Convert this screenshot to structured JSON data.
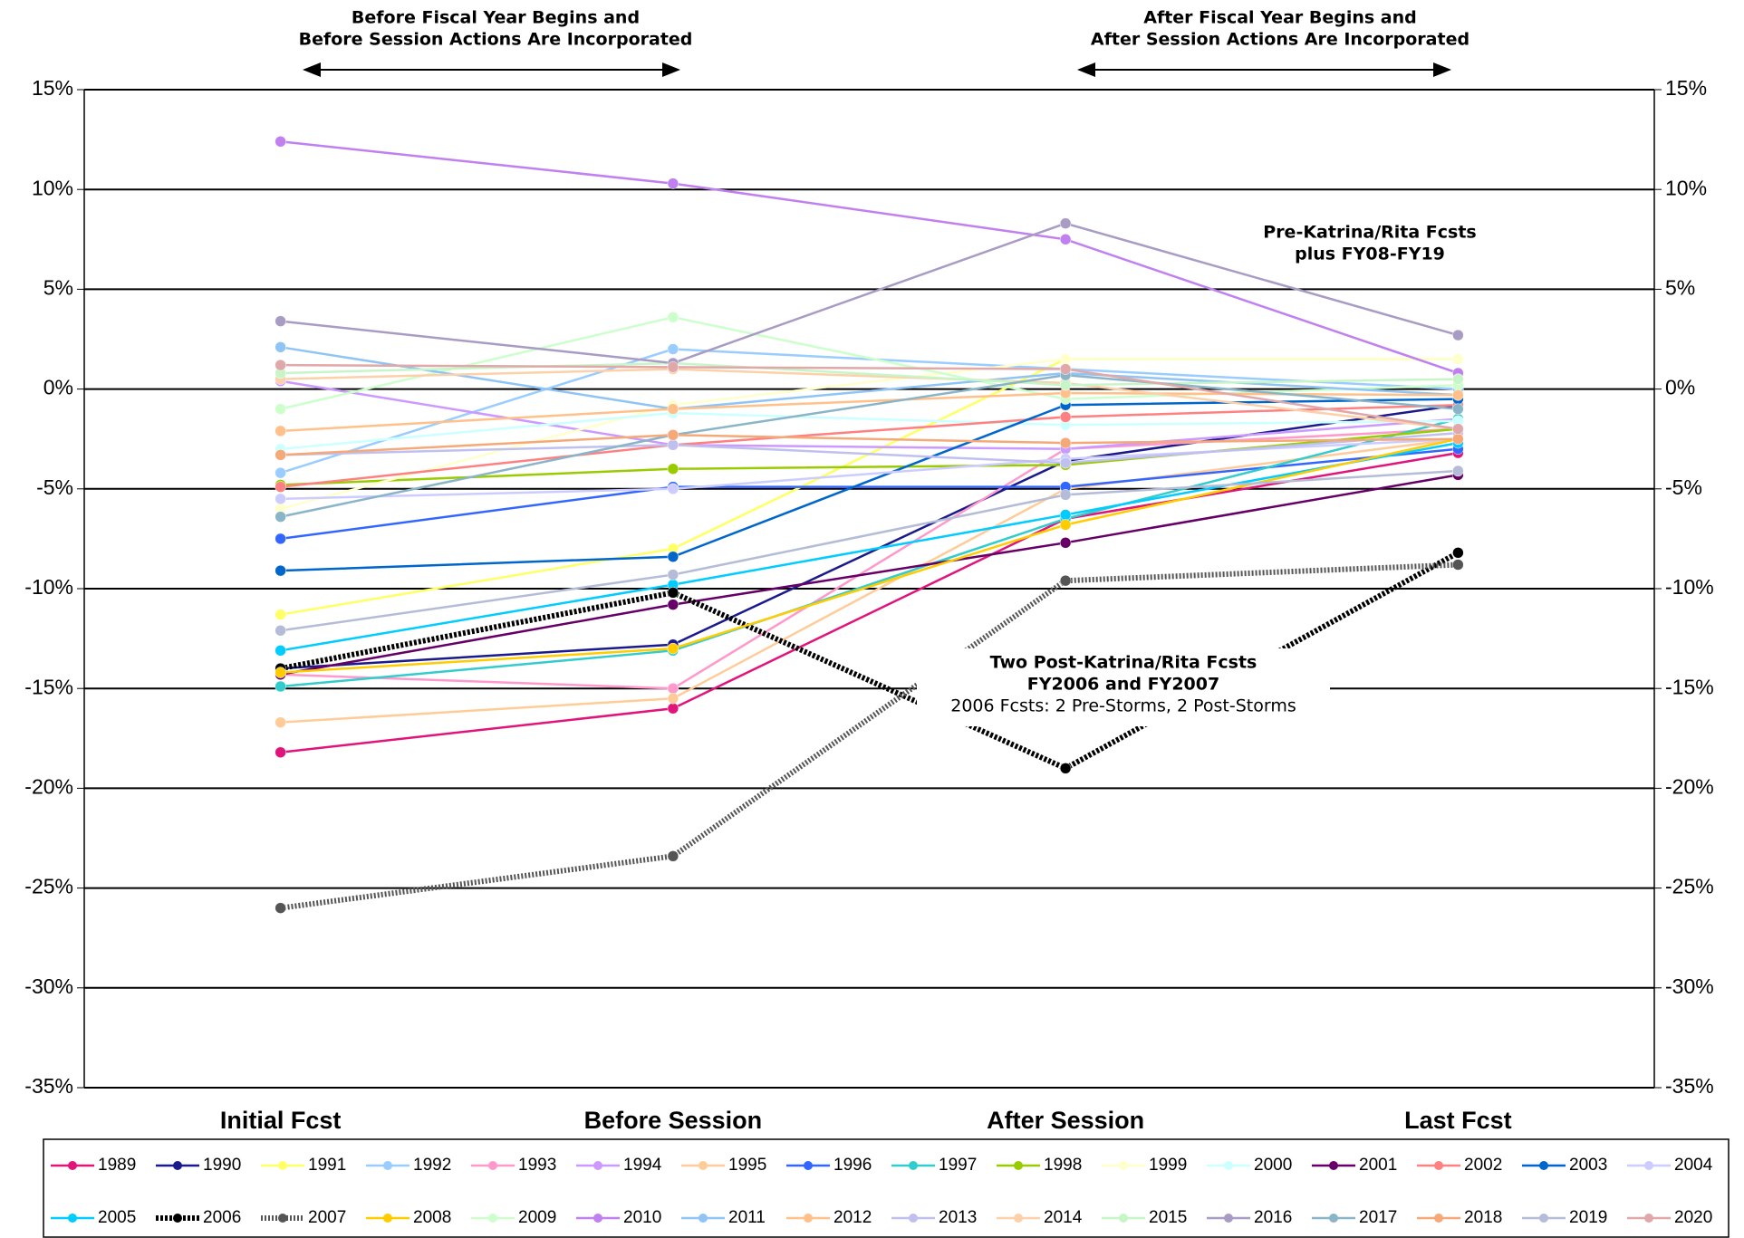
{
  "chart_data": {
    "type": "line",
    "categories": [
      "Initial Fcst",
      "Before Session",
      "After Session",
      "Last Fcst"
    ],
    "ylim": [
      -35,
      15
    ],
    "yticks": [
      {
        "value": -35,
        "label": "-35%"
      },
      {
        "value": -30,
        "label": "-30%"
      },
      {
        "value": -25,
        "label": "-25%"
      },
      {
        "value": -20,
        "label": "-20%"
      },
      {
        "value": -15,
        "label": "-15%"
      },
      {
        "value": -10,
        "label": "-10%"
      },
      {
        "value": -5,
        "label": "-5%"
      },
      {
        "value": 0,
        "label": "0%"
      },
      {
        "value": 5,
        "label": "5%"
      },
      {
        "value": 10,
        "label": "10%"
      },
      {
        "value": 15,
        "label": "15%"
      }
    ],
    "y2lim": [
      -35,
      15
    ],
    "y2ticks": [
      {
        "value": -35,
        "label": "-35%"
      },
      {
        "value": -30,
        "label": "-30%"
      },
      {
        "value": -25,
        "label": "-25%"
      },
      {
        "value": -20,
        "label": "-20%"
      },
      {
        "value": -15,
        "label": "-15%"
      },
      {
        "value": -10,
        "label": "-10%"
      },
      {
        "value": -5,
        "label": "-5%"
      },
      {
        "value": 0,
        "label": "0%"
      },
      {
        "value": 5,
        "label": "5%"
      },
      {
        "value": 10,
        "label": "10%"
      },
      {
        "value": 15,
        "label": "15%"
      }
    ],
    "grid": true,
    "annotations": [
      {
        "text": [
          "Before Fiscal Year Begins and",
          "Before Session Actions Are Incorporated"
        ]
      },
      {
        "text": [
          "After Fiscal Year Begins and",
          "After Session Actions Are Incorporated"
        ]
      },
      {
        "text": [
          "Pre-Katrina/Rita Fcsts",
          "plus FY08-FY19"
        ]
      },
      {
        "text": [
          "Two Post-Katrina/Rita Fcsts",
          "FY2006 and FY2007"
        ],
        "subtext": "2006 Fcsts: 2 Pre-Storms, 2 Post-Storms"
      }
    ],
    "series": [
      {
        "name": "1989",
        "color": "#e0147a",
        "values": [
          -18.2,
          -16,
          -6.5,
          -3.2
        ]
      },
      {
        "name": "1990",
        "color": "#1a1a8c",
        "values": [
          -14,
          -12.8,
          -3.6,
          -0.8
        ]
      },
      {
        "name": "1991",
        "color": "#ffff66",
        "values": [
          -11.3,
          -8,
          1.5,
          1.5
        ]
      },
      {
        "name": "1992",
        "color": "#99ccff",
        "values": [
          -4.2,
          2,
          1,
          0
        ]
      },
      {
        "name": "1993",
        "color": "#ff99cc",
        "values": [
          -14.3,
          -15,
          -3,
          -2
        ]
      },
      {
        "name": "1994",
        "color": "#cc99ff",
        "values": [
          0.4,
          -2.8,
          -3,
          -1.5
        ]
      },
      {
        "name": "1995",
        "color": "#ffcc99",
        "values": [
          -16.7,
          -15.5,
          -5,
          -2.5
        ]
      },
      {
        "name": "1996",
        "color": "#3366ff",
        "values": [
          -7.5,
          -4.9,
          -4.9,
          -3
        ]
      },
      {
        "name": "1997",
        "color": "#33cccc",
        "values": [
          -14.9,
          -13.1,
          -6.5,
          -1.5
        ]
      },
      {
        "name": "1998",
        "color": "#99cc00",
        "values": [
          -4.8,
          -4,
          -3.8,
          -2
        ]
      },
      {
        "name": "1999",
        "color": "#ffffcc",
        "values": [
          -6,
          -0.8,
          1.5,
          1.5
        ]
      },
      {
        "name": "2000",
        "color": "#ccffff",
        "values": [
          -3,
          -1.2,
          -1.8,
          -1.6
        ]
      },
      {
        "name": "2001",
        "color": "#660066",
        "values": [
          -14.3,
          -10.8,
          -7.7,
          -4.3
        ]
      },
      {
        "name": "2002",
        "color": "#ff8080",
        "values": [
          -4.9,
          -2.8,
          -1.4,
          -0.8
        ]
      },
      {
        "name": "2003",
        "color": "#0066cc",
        "values": [
          -9.1,
          -8.4,
          -0.8,
          -0.5
        ]
      },
      {
        "name": "2004",
        "color": "#ccccff",
        "values": [
          -5.5,
          -5,
          -3.5,
          -2.5
        ]
      },
      {
        "name": "2005",
        "color": "#00ccff",
        "values": [
          -13.1,
          -9.8,
          -6.3,
          -2.7
        ]
      },
      {
        "name": "2006",
        "color": "#000000",
        "values": [
          -14,
          -10.2,
          -19,
          -8.2
        ]
      },
      {
        "name": "2007",
        "color": "#555555",
        "values": [
          -26,
          -23.4,
          -9.6,
          -8.8
        ]
      },
      {
        "name": "2008",
        "color": "#ffcc00",
        "values": [
          -14.2,
          -13,
          -6.8,
          -2.5
        ]
      },
      {
        "name": "2009",
        "color": "#ccffcc",
        "values": [
          -1,
          3.6,
          -0.5,
          0.2
        ]
      },
      {
        "name": "2010",
        "color": "#c080f0",
        "values": [
          12.4,
          10.3,
          7.5,
          0.8
        ]
      },
      {
        "name": "2011",
        "color": "#8fc4f5",
        "values": [
          2.1,
          -1,
          0.8,
          -0.3
        ]
      },
      {
        "name": "2012",
        "color": "#ffc08a",
        "values": [
          -2.1,
          -1,
          -0.2,
          -0.3
        ]
      },
      {
        "name": "2013",
        "color": "#c0c0f0",
        "values": [
          -3.3,
          -2.8,
          -3.7,
          -2.2
        ]
      },
      {
        "name": "2014",
        "color": "#fcd0a8",
        "values": [
          0.5,
          1,
          0.3,
          -2
        ]
      },
      {
        "name": "2015",
        "color": "#c8f5c8",
        "values": [
          0.8,
          1.3,
          0.2,
          0.5
        ]
      },
      {
        "name": "2016",
        "color": "#a89bc4",
        "values": [
          3.4,
          1.3,
          8.3,
          2.7
        ]
      },
      {
        "name": "2017",
        "color": "#8ab4c8",
        "values": [
          -6.4,
          -2.3,
          0.7,
          -1
        ]
      },
      {
        "name": "2018",
        "color": "#f5a878",
        "values": [
          -3.3,
          -2.3,
          -2.7,
          -2.5
        ]
      },
      {
        "name": "2019",
        "color": "#b4bcd8",
        "values": [
          -12.1,
          -9.3,
          -5.3,
          -4.1
        ]
      },
      {
        "name": "2020",
        "color": "#e0a8a8",
        "values": [
          1.2,
          1.1,
          1,
          -2
        ]
      }
    ]
  }
}
